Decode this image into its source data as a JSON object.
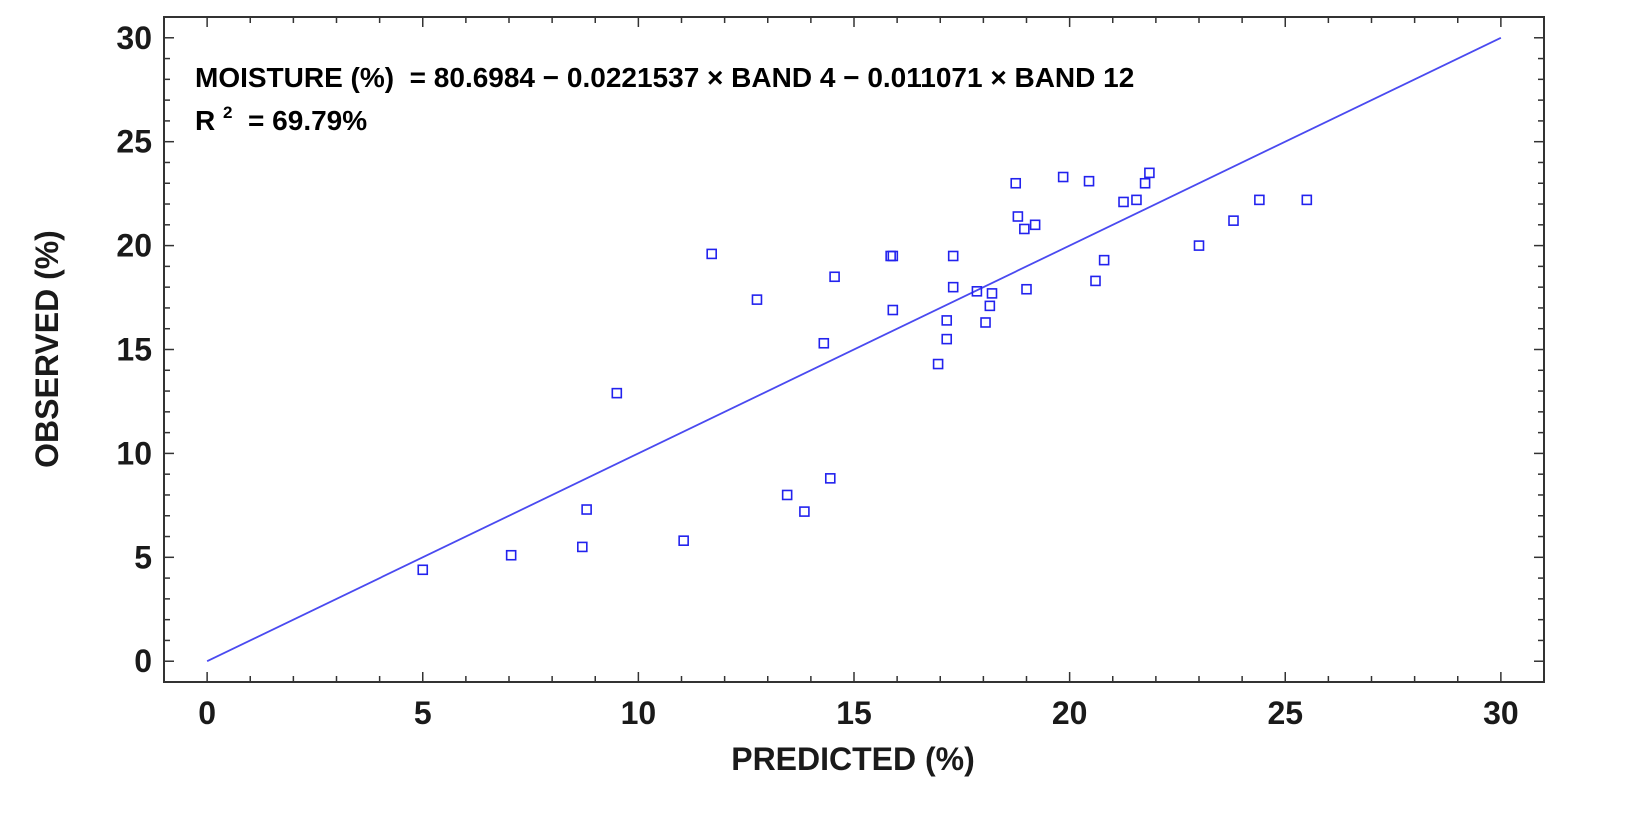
{
  "chart_data": {
    "type": "scatter",
    "xlabel": "PREDICTED (%)",
    "ylabel": "OBSERVED (%)",
    "xlim": [
      -1,
      31
    ],
    "ylim": [
      -1,
      31
    ],
    "xticks": [
      0,
      5,
      10,
      15,
      20,
      25,
      30
    ],
    "yticks": [
      0,
      5,
      10,
      15,
      20,
      25,
      30
    ],
    "grid": false,
    "annotations": {
      "equation": "MOISTURE (%)  = 80.6984 − 0.0221537 × BAND 4 − 0.011071 × BAND 12",
      "r2_label": "R",
      "r2_superscript": "2",
      "r2_value": " = 69.79%"
    },
    "fit_line": {
      "x": [
        0,
        30
      ],
      "y": [
        0,
        30
      ]
    },
    "series": [
      {
        "marker": "open-square",
        "color": "#2222ee",
        "points": [
          [
            5.0,
            4.4
          ],
          [
            7.05,
            5.1
          ],
          [
            8.7,
            5.5
          ],
          [
            8.8,
            7.3
          ],
          [
            9.5,
            12.9
          ],
          [
            11.05,
            5.8
          ],
          [
            11.7,
            19.6
          ],
          [
            12.75,
            17.4
          ],
          [
            13.45,
            8.0
          ],
          [
            13.85,
            7.2
          ],
          [
            14.3,
            15.3
          ],
          [
            14.45,
            8.8
          ],
          [
            14.55,
            18.5
          ],
          [
            15.85,
            19.5
          ],
          [
            15.9,
            19.5
          ],
          [
            15.9,
            16.9
          ],
          [
            16.95,
            14.3
          ],
          [
            17.15,
            16.4
          ],
          [
            17.15,
            15.5
          ],
          [
            17.3,
            19.5
          ],
          [
            17.3,
            18.0
          ],
          [
            17.85,
            17.8
          ],
          [
            18.05,
            16.3
          ],
          [
            18.15,
            17.1
          ],
          [
            18.2,
            17.7
          ],
          [
            18.75,
            23.0
          ],
          [
            18.8,
            21.4
          ],
          [
            18.95,
            20.8
          ],
          [
            19.0,
            17.9
          ],
          [
            19.2,
            21.0
          ],
          [
            19.85,
            23.3
          ],
          [
            20.45,
            23.1
          ],
          [
            20.6,
            18.3
          ],
          [
            20.8,
            19.3
          ],
          [
            21.25,
            22.1
          ],
          [
            21.55,
            22.2
          ],
          [
            21.75,
            23.0
          ],
          [
            21.85,
            23.5
          ],
          [
            23.0,
            20.0
          ],
          [
            23.8,
            21.2
          ],
          [
            24.4,
            22.2
          ],
          [
            25.5,
            22.2
          ]
        ]
      }
    ]
  },
  "colors": {
    "series": "#2222ee",
    "fit_line": "#4a4af0",
    "axis": "#333333",
    "text": "#1a1a1a"
  }
}
